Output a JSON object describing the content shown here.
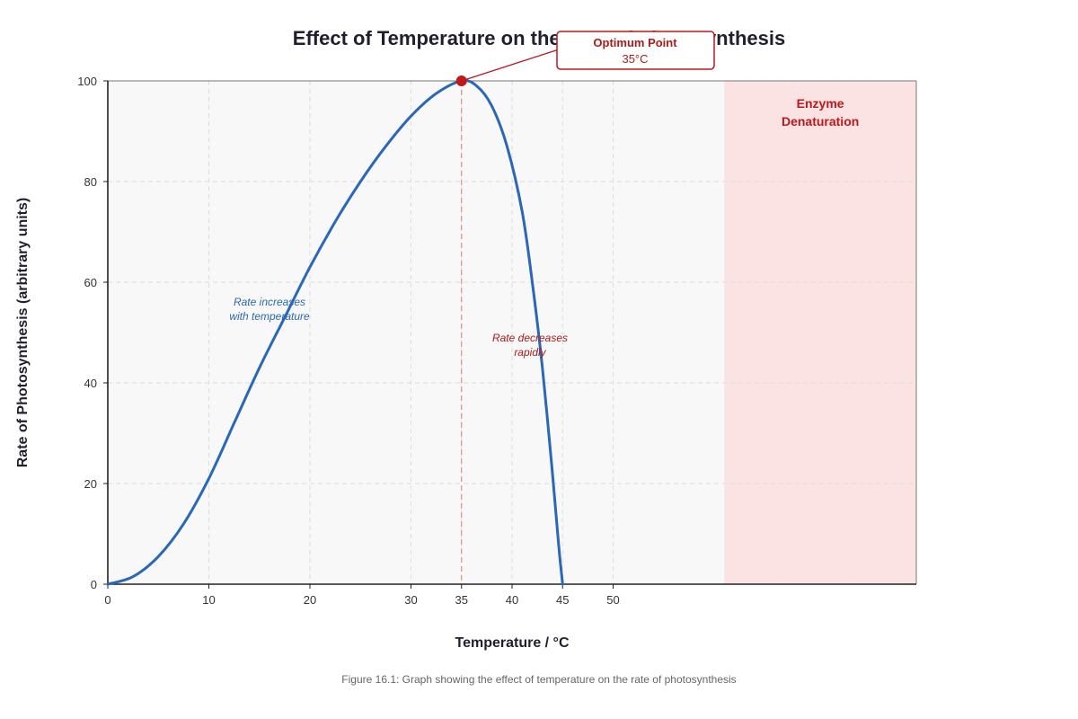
{
  "chart_data": {
    "type": "line",
    "title": "Effect of Temperature on the Rate of Photosynthesis",
    "xlabel": "Temperature / °C",
    "ylabel": "Rate of Photosynthesis (arbitrary units)",
    "xlim": [
      0,
      80
    ],
    "ylim": [
      0,
      100
    ],
    "x_ticks": [
      0,
      10,
      20,
      30,
      35,
      40,
      45,
      50
    ],
    "y_ticks": [
      0,
      20,
      40,
      60,
      80,
      100
    ],
    "grid": true,
    "series": [
      {
        "x": [
          0,
          2.5,
          5,
          7.5,
          10,
          12.5,
          15,
          17.5,
          20,
          22.5,
          25,
          27.5,
          30,
          32.5,
          35,
          36.5,
          38,
          39.5,
          41,
          42,
          43,
          44,
          44.6,
          45
        ],
        "y": [
          0,
          1.5,
          5.5,
          12,
          21,
          32,
          43,
          53,
          63,
          72,
          80,
          87,
          93,
          97.5,
          100,
          99,
          95,
          87,
          74,
          60,
          43,
          22,
          8,
          0
        ],
        "color": "#2b67b8"
      }
    ],
    "optimum": {
      "x": 35,
      "y": 100,
      "label": "Optimum Point",
      "value_label": "35°C"
    },
    "annotations": [
      {
        "lines": [
          "Rate increases",
          "with temperature"
        ]
      },
      {
        "lines": [
          "Rate decreases",
          "rapidly"
        ]
      }
    ],
    "denaturation_zone": {
      "x_start": 61,
      "x_end": 80,
      "lines": [
        "Enzyme",
        "Denaturation"
      ]
    },
    "caption": "Figure 16.1: Graph showing the effect of temperature on the rate of photosynthesis"
  },
  "colors": {
    "curve": "#2b67b8",
    "accent_red": "#c0171b",
    "zone_fill": "#fbe3e3",
    "plot_bg": "#f8f8f8"
  }
}
